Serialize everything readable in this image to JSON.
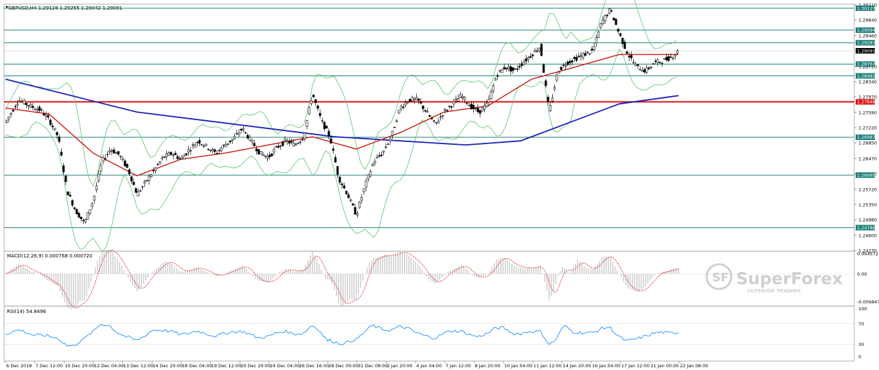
{
  "header": {
    "symbol_line": "GBPUSD,H4  1.29128 1.29255 1.29042 1.29091"
  },
  "colors": {
    "level_line": "#1f7f7a",
    "key_level": "#e01010",
    "sma_long": "#1a22b8",
    "ema_short": "#cc1a10",
    "bollinger": "#58c46a",
    "candle": "#000000",
    "macd_hist": "#a0a0a0",
    "macd_signal": "#e02020",
    "rsi_line": "#1e90ff",
    "label_box": "#1f7f7a",
    "key_box": "#e01010"
  },
  "price_axis_ticks": [
    "1.30210",
    "1.29840",
    "1.29460",
    "1.28710",
    "1.28340",
    "1.27970",
    "1.27590",
    "1.27220",
    "1.26850",
    "1.26470",
    "1.26100",
    "1.25720",
    "1.25350",
    "1.24980",
    "1.24600",
    "1.24230"
  ],
  "price_levels": [
    {
      "label": "1.30127",
      "value": 1.30127,
      "key": false
    },
    {
      "label": "1.29594",
      "value": 1.29594,
      "key": false
    },
    {
      "label": "1.29287",
      "value": 1.29287,
      "key": false
    },
    {
      "label": "1.28767",
      "value": 1.28767,
      "key": false
    },
    {
      "label": "1.28481",
      "value": 1.28481,
      "key": false
    },
    {
      "label": "1.27848",
      "value": 1.27848,
      "key": true
    },
    {
      "label": "1.26987",
      "value": 1.26987,
      "key": false
    },
    {
      "label": "1.26065",
      "value": 1.26065,
      "key": false
    },
    {
      "label": "1.24788",
      "value": 1.24788,
      "key": false
    }
  ],
  "current_price": {
    "label": "1.29091",
    "value": 1.29091
  },
  "macd": {
    "label": "MACD(12,26,9) 0.000768 0.000720",
    "ticks": [
      "0.004572",
      "0.00",
      "-0.006847"
    ]
  },
  "rsi": {
    "label": "RSI(14) 54.8496",
    "ticks": [
      "100",
      "70",
      "30",
      "0"
    ]
  },
  "time_labels": [
    "6 Dec 2018",
    "7 Dec 12:00",
    "10 Dec 20:00",
    "12 Dec 04:00",
    "13 Dec 12:00",
    "14 Dec 20:00",
    "18 Dec 04:00",
    "19 Dec 12:00",
    "20 Dec 20:00",
    "24 Dec 04:00",
    "26 Dec 16:00",
    "28 Dec 00:00",
    "31 Dec 08:00",
    "2 Jan 20:00",
    "4 Jan 04:00",
    "7 Jan 12:00",
    "8 Jan 20:00",
    "10 Jan 04:00",
    "11 Jan 12:00",
    "14 Jan 20:00",
    "16 Jan 04:00",
    "17 Jan 12:00",
    "21 Jan 00:00",
    "22 Jan 08:00"
  ],
  "watermark": {
    "brand": "SuperForex",
    "tagline": "SUPERIOR TRADING"
  },
  "chart_data": {
    "type": "line",
    "title": "GBPUSD,H4",
    "price_range": [
      1.2423,
      1.3021
    ],
    "close_path": [
      [
        0,
        1.2735
      ],
      [
        12,
        1.279
      ],
      [
        22,
        1.2775
      ],
      [
        32,
        1.2765
      ],
      [
        40,
        1.274
      ],
      [
        48,
        1.27
      ],
      [
        56,
        1.257
      ],
      [
        64,
        1.252
      ],
      [
        72,
        1.249
      ],
      [
        80,
        1.2545
      ],
      [
        88,
        1.264
      ],
      [
        96,
        1.267
      ],
      [
        104,
        1.2655
      ],
      [
        112,
        1.262
      ],
      [
        120,
        1.256
      ],
      [
        128,
        1.259
      ],
      [
        136,
        1.262
      ],
      [
        144,
        1.265
      ],
      [
        152,
        1.266
      ],
      [
        160,
        1.2645
      ],
      [
        168,
        1.267
      ],
      [
        176,
        1.269
      ],
      [
        184,
        1.2675
      ],
      [
        192,
        1.266
      ],
      [
        200,
        1.268
      ],
      [
        208,
        1.2695
      ],
      [
        216,
        1.272
      ],
      [
        224,
        1.269
      ],
      [
        232,
        1.266
      ],
      [
        240,
        1.265
      ],
      [
        248,
        1.2675
      ],
      [
        256,
        1.269
      ],
      [
        264,
        1.268
      ],
      [
        272,
        1.27
      ],
      [
        280,
        1.2805
      ],
      [
        288,
        1.274
      ],
      [
        296,
        1.27
      ],
      [
        304,
        1.26
      ],
      [
        312,
        1.256
      ],
      [
        320,
        1.251
      ],
      [
        328,
        1.258
      ],
      [
        336,
        1.264
      ],
      [
        344,
        1.266
      ],
      [
        352,
        1.27
      ],
      [
        360,
        1.277
      ],
      [
        368,
        1.279
      ],
      [
        376,
        1.279
      ],
      [
        384,
        1.276
      ],
      [
        392,
        1.273
      ],
      [
        400,
        1.276
      ],
      [
        408,
        1.278
      ],
      [
        416,
        1.28
      ],
      [
        424,
        1.2775
      ],
      [
        432,
        1.276
      ],
      [
        440,
        1.278
      ],
      [
        448,
        1.285
      ],
      [
        456,
        1.287
      ],
      [
        464,
        1.286
      ],
      [
        472,
        1.288
      ],
      [
        480,
        1.29
      ],
      [
        488,
        1.292
      ],
      [
        496,
        1.276
      ],
      [
        504,
        1.286
      ],
      [
        512,
        1.288
      ],
      [
        520,
        1.289
      ],
      [
        528,
        1.29
      ],
      [
        536,
        1.291
      ],
      [
        544,
        1.298
      ],
      [
        552,
        1.301
      ],
      [
        560,
        1.295
      ],
      [
        568,
        1.29
      ],
      [
        576,
        1.287
      ],
      [
        584,
        1.286
      ],
      [
        592,
        1.288
      ],
      [
        600,
        1.2885
      ],
      [
        608,
        1.2895
      ],
      [
        614,
        1.2909
      ]
    ],
    "series": [
      {
        "name": "SMA",
        "values": [
          [
            0,
            1.284
          ],
          [
            60,
            1.28
          ],
          [
            120,
            1.276
          ],
          [
            180,
            1.274
          ],
          [
            240,
            1.272
          ],
          [
            300,
            1.27
          ],
          [
            360,
            1.269
          ],
          [
            420,
            1.268
          ],
          [
            470,
            1.269
          ],
          [
            520,
            1.274
          ],
          [
            560,
            1.278
          ],
          [
            614,
            1.28
          ]
        ]
      },
      {
        "name": "EMA",
        "values": [
          [
            0,
            1.277
          ],
          [
            40,
            1.2755
          ],
          [
            80,
            1.266
          ],
          [
            120,
            1.2605
          ],
          [
            160,
            1.2645
          ],
          [
            200,
            1.266
          ],
          [
            240,
            1.268
          ],
          [
            280,
            1.27
          ],
          [
            320,
            1.267
          ],
          [
            360,
            1.271
          ],
          [
            400,
            1.276
          ],
          [
            440,
            1.2775
          ],
          [
            480,
            1.284
          ],
          [
            520,
            1.287
          ],
          [
            560,
            1.29
          ],
          [
            614,
            1.29
          ]
        ]
      }
    ]
  }
}
